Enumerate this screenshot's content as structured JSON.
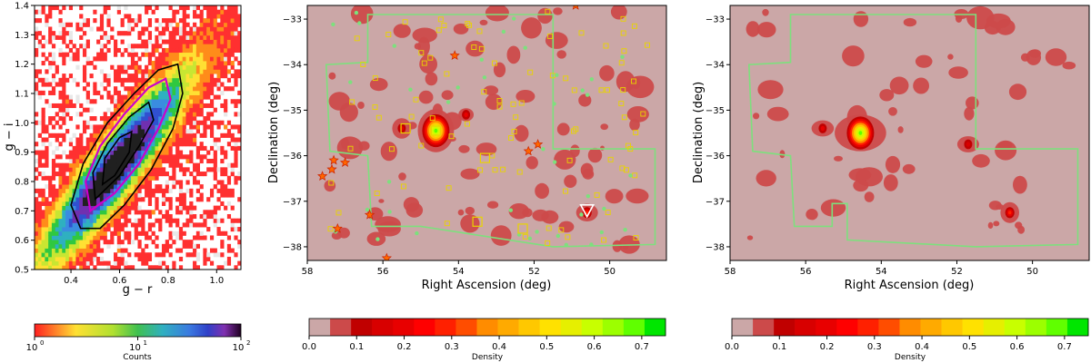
{
  "chart_data": [
    {
      "type": "heatmap",
      "xlabel": "g − r",
      "ylabel": "g − i",
      "xlim": [
        0.25,
        1.1
      ],
      "ylim": [
        0.5,
        1.4
      ],
      "xticks": [
        0.4,
        0.6,
        0.8,
        1.0
      ],
      "yticks": [
        0.5,
        0.6,
        0.7,
        0.8,
        0.9,
        1.0,
        1.1,
        1.2,
        1.3,
        1.4
      ],
      "xtick_labels": [
        "0.4",
        "0.6",
        "0.8",
        "1.0"
      ],
      "ytick_labels": [
        "0.5",
        "0.6",
        "0.7",
        "0.8",
        "0.9",
        "1.0",
        "1.1",
        "1.2",
        "1.3",
        "1.4"
      ],
      "color_scale": "log",
      "colorbar": {
        "label": "Counts",
        "ticks": [
          "10",
          "10",
          "10"
        ],
        "tick_exponents": [
          "0",
          "1",
          "2"
        ]
      },
      "density_ridge": {
        "slope": 1.08,
        "intercept": 0.22,
        "peak_at": [
          0.58,
          0.85
        ]
      },
      "contours": [
        {
          "level": "outer",
          "color": "#000000",
          "points": [
            [
              0.44,
              0.64
            ],
            [
              0.4,
              0.72
            ],
            [
              0.45,
              0.86
            ],
            [
              0.55,
              1.0
            ],
            [
              0.66,
              1.1
            ],
            [
              0.76,
              1.18
            ],
            [
              0.84,
              1.2
            ],
            [
              0.86,
              1.1
            ],
            [
              0.82,
              0.98
            ],
            [
              0.73,
              0.84
            ],
            [
              0.62,
              0.72
            ],
            [
              0.52,
              0.64
            ]
          ]
        },
        {
          "level": "middle",
          "color": "#cc00cc",
          "points": [
            [
              0.48,
              0.7
            ],
            [
              0.46,
              0.8
            ],
            [
              0.52,
              0.92
            ],
            [
              0.62,
              1.03
            ],
            [
              0.72,
              1.12
            ],
            [
              0.79,
              1.15
            ],
            [
              0.81,
              1.08
            ],
            [
              0.76,
              0.98
            ],
            [
              0.68,
              0.86
            ],
            [
              0.58,
              0.76
            ]
          ]
        },
        {
          "level": "inner",
          "color": "#000000",
          "points": [
            [
              0.5,
              0.74
            ],
            [
              0.49,
              0.83
            ],
            [
              0.55,
              0.93
            ],
            [
              0.64,
              1.02
            ],
            [
              0.72,
              1.07
            ],
            [
              0.74,
              1.01
            ],
            [
              0.68,
              0.92
            ],
            [
              0.6,
              0.82
            ]
          ]
        },
        {
          "level": "core",
          "color": "#000000",
          "points": [
            [
              0.53,
              0.79
            ],
            [
              0.54,
              0.88
            ],
            [
              0.6,
              0.95
            ],
            [
              0.65,
              0.97
            ],
            [
              0.64,
              0.9
            ],
            [
              0.58,
              0.82
            ]
          ]
        }
      ]
    },
    {
      "type": "heatmap",
      "xlabel": "Right Ascension (deg)",
      "ylabel": "Declination (deg)",
      "xlim": [
        58.0,
        48.5
      ],
      "ylim": [
        -38.3,
        -32.7
      ],
      "xticks": [
        58,
        56,
        54,
        52,
        50
      ],
      "yticks": [
        -38,
        -37,
        -36,
        -35,
        -34,
        -33
      ],
      "xtick_labels": [
        "58",
        "56",
        "54",
        "52",
        "50"
      ],
      "ytick_labels": [
        "−38",
        "−37",
        "−36",
        "−35",
        "−34",
        "−33"
      ],
      "colorbar": {
        "label": "Density",
        "ticks": [
          0.0,
          0.1,
          0.2,
          0.3,
          0.4,
          0.5,
          0.6,
          0.7
        ],
        "tick_labels": [
          "0.0",
          "0.1",
          "0.2",
          "0.3",
          "0.4",
          "0.5",
          "0.6",
          "0.7"
        ],
        "max": 0.75
      },
      "footprint": [
        [
          56.4,
          -32.9
        ],
        [
          51.5,
          -32.9
        ],
        [
          51.5,
          -35.85
        ],
        [
          48.8,
          -35.85
        ],
        [
          48.8,
          -37.95
        ],
        [
          51.5,
          -38.0
        ],
        [
          55.0,
          -37.55
        ],
        [
          56.3,
          -37.55
        ],
        [
          56.4,
          -36.0
        ],
        [
          57.4,
          -35.9
        ],
        [
          57.5,
          -34.0
        ],
        [
          56.4,
          -33.95
        ]
      ],
      "density_peaks": [
        {
          "ra": 54.6,
          "dec": -35.45,
          "value": 0.72
        },
        {
          "ra": 50.6,
          "dec": -37.25,
          "value": 0.3
        },
        {
          "ra": 55.5,
          "dec": -35.4,
          "value": 0.2
        },
        {
          "ra": 53.8,
          "dec": -35.1,
          "value": 0.18
        }
      ],
      "markers": {
        "stars_ra_dec": [
          [
            50.9,
            -32.7
          ],
          [
            54.1,
            -33.8
          ],
          [
            57.3,
            -36.1
          ],
          [
            57.0,
            -36.15
          ],
          [
            57.35,
            -36.3
          ],
          [
            57.6,
            -36.45
          ],
          [
            51.9,
            -35.75
          ],
          [
            52.15,
            -35.9
          ],
          [
            56.35,
            -37.3
          ],
          [
            57.2,
            -37.6
          ],
          [
            55.9,
            -38.25
          ]
        ],
        "large_squares_ra_dec": [
          [
            55.4,
            -35.4
          ],
          [
            54.6,
            -35.45
          ],
          [
            53.3,
            -36.05
          ],
          [
            53.5,
            -37.45
          ],
          [
            52.3,
            -37.6
          ]
        ],
        "triangle_ra_dec": [
          50.6,
          -37.2
        ]
      }
    },
    {
      "type": "heatmap",
      "xlabel": "Right Ascension (deg)",
      "ylabel": "Declination (deg)",
      "xlim": [
        58.0,
        48.5
      ],
      "ylim": [
        -38.3,
        -32.7
      ],
      "xticks": [
        58,
        56,
        54,
        52,
        50
      ],
      "yticks": [
        -38,
        -37,
        -36,
        -35,
        -34,
        -33
      ],
      "xtick_labels": [
        "58",
        "56",
        "54",
        "52",
        "50"
      ],
      "ytick_labels": [
        "−38",
        "−37",
        "−36",
        "−35",
        "−34",
        "−33"
      ],
      "colorbar": {
        "label": "Density",
        "ticks": [
          0.0,
          0.1,
          0.2,
          0.3,
          0.4,
          0.5,
          0.6,
          0.7
        ],
        "tick_labels": [
          "0.0",
          "0.1",
          "0.2",
          "0.3",
          "0.4",
          "0.5",
          "0.6",
          "0.7"
        ],
        "max": 0.75
      },
      "footprint": [
        [
          56.4,
          -32.9
        ],
        [
          51.5,
          -32.9
        ],
        [
          51.5,
          -35.85
        ],
        [
          48.8,
          -35.85
        ],
        [
          48.8,
          -37.95
        ],
        [
          51.5,
          -38.0
        ],
        [
          54.9,
          -37.85
        ],
        [
          54.9,
          -37.05
        ],
        [
          55.3,
          -37.05
        ],
        [
          55.3,
          -37.55
        ],
        [
          56.3,
          -37.55
        ],
        [
          56.4,
          -36.0
        ],
        [
          57.4,
          -35.9
        ],
        [
          57.5,
          -34.0
        ],
        [
          56.4,
          -33.95
        ]
      ],
      "density_peaks": [
        {
          "ra": 54.55,
          "dec": -35.5,
          "value": 0.72
        },
        {
          "ra": 50.6,
          "dec": -37.25,
          "value": 0.3
        },
        {
          "ra": 55.55,
          "dec": -35.4,
          "value": 0.2
        },
        {
          "ra": 51.7,
          "dec": -35.75,
          "value": 0.15
        }
      ]
    }
  ],
  "colors": {
    "histogram_cmap": [
      "#e8e8e8",
      "#ff3030",
      "#ff8c1a",
      "#ffe033",
      "#c8e632",
      "#30c840",
      "#2fb0c0",
      "#3a8ce0",
      "#3050d0",
      "#7030b0",
      "#202020"
    ],
    "density_levels": [
      "#cba7a7",
      "#cc4a4a",
      "#c00000",
      "#d80000",
      "#e80000",
      "#ff0000",
      "#ff2000",
      "#ff4d00",
      "#ff8c00",
      "#ffaa00",
      "#ffc800",
      "#ffe100",
      "#e6ef00",
      "#c8ff00",
      "#9cff00",
      "#60ff00",
      "#00e600"
    ],
    "footprint": "#7de07d",
    "markers": "#e8d400"
  }
}
